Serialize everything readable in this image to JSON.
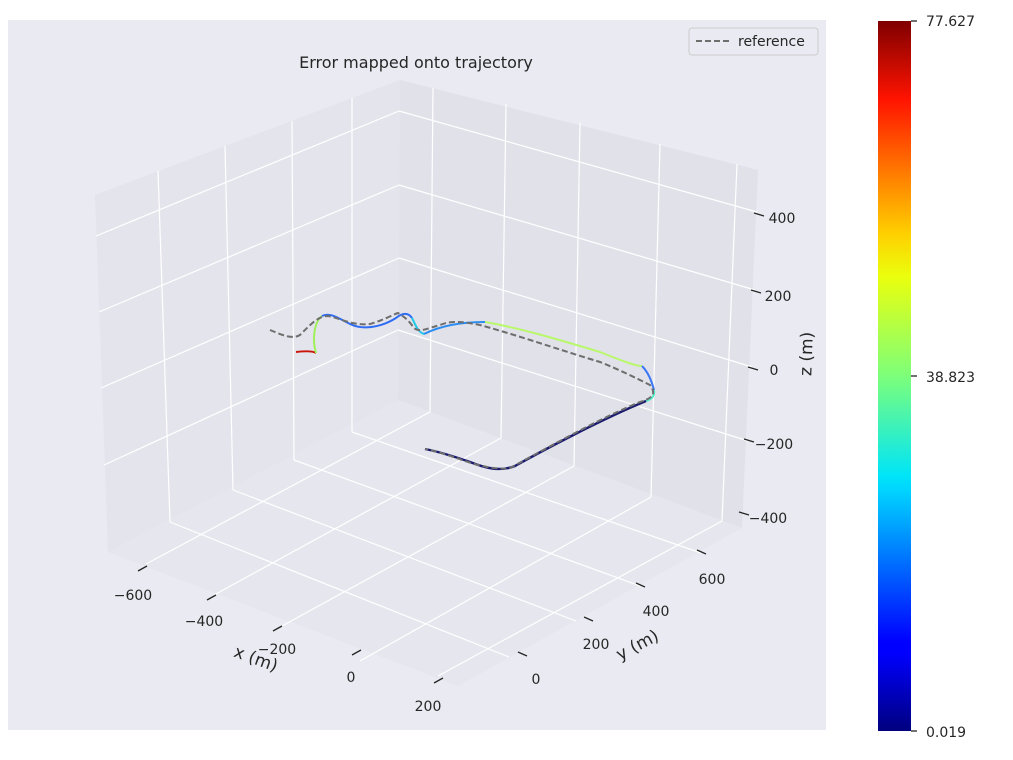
{
  "chart_data": {
    "type": "line3d",
    "title": "Error mapped onto trajectory",
    "xlabel": "x (m)",
    "ylabel": "y (m)",
    "zlabel": "z (m)",
    "x_ticks": [
      "−600",
      "−400",
      "−200",
      "0",
      "200"
    ],
    "y_ticks": [
      "0",
      "200",
      "400",
      "600"
    ],
    "z_ticks": [
      "400",
      "200",
      "0",
      "−200",
      "−400"
    ],
    "legend": {
      "placement": "top-right",
      "entries": [
        "reference"
      ]
    },
    "colorbar": {
      "min": 0.019,
      "max": 77.627,
      "tick_labels": [
        "77.627",
        "38.823",
        "0.019"
      ],
      "colormap": "jet"
    },
    "grid": true,
    "series": [
      {
        "name": "reference",
        "style": "dashed",
        "color": "#6e6e6e"
      }
    ]
  }
}
